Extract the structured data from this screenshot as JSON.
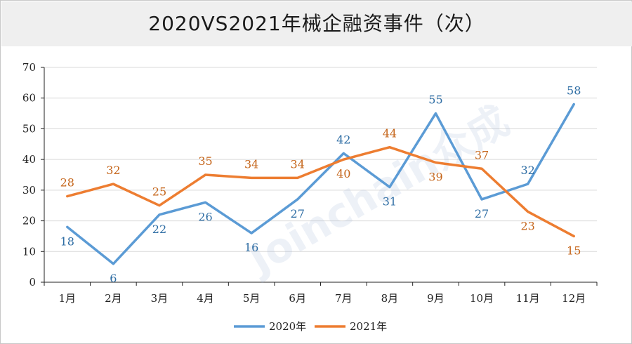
{
  "chart_data": {
    "type": "line",
    "title": "2020VS2021年械企融资事件（次）",
    "xlabel": "",
    "ylabel": "",
    "categories": [
      "1月",
      "2月",
      "3月",
      "4月",
      "5月",
      "6月",
      "7月",
      "8月",
      "9月",
      "10月",
      "11月",
      "12月"
    ],
    "ylim": [
      0,
      70
    ],
    "yticks": [
      0,
      10,
      20,
      30,
      40,
      50,
      60,
      70
    ],
    "grid": true,
    "legend_position": "bottom-center",
    "series": [
      {
        "name": "2020年",
        "color": "#5b9bd5",
        "label_color": "#2e6da4",
        "values": [
          18,
          6,
          22,
          26,
          16,
          27,
          42,
          31,
          55,
          27,
          32,
          58
        ]
      },
      {
        "name": "2021年",
        "color": "#ed7d31",
        "label_color": "#c5651a",
        "values": [
          28,
          32,
          25,
          35,
          34,
          34,
          40,
          44,
          39,
          37,
          23,
          15
        ]
      }
    ],
    "watermark": "Joinchain众成"
  }
}
